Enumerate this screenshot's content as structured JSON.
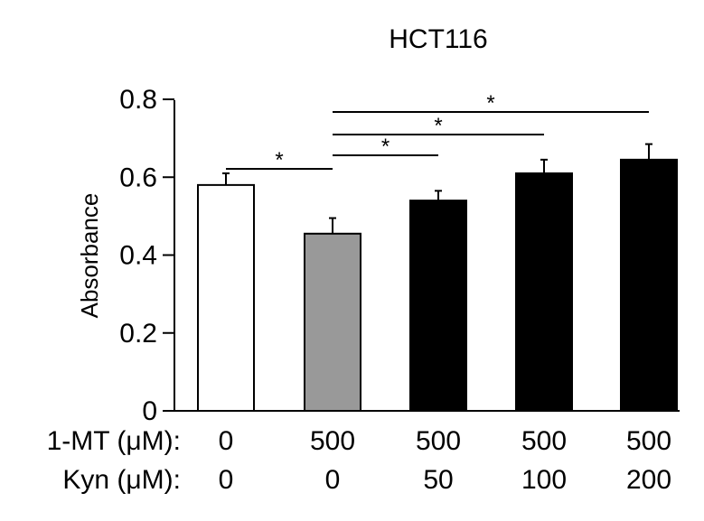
{
  "chart_data": {
    "type": "bar",
    "title": "HCT116",
    "ylabel": "Absorbance",
    "xlabel": "",
    "ylim": [
      0,
      0.8
    ],
    "yticks": [
      0,
      0.2,
      0.4,
      0.6,
      0.8
    ],
    "ytick_labels": [
      "0",
      "0.2",
      "0.4",
      "0.6",
      "0.8"
    ],
    "grid": false,
    "row_labels": [
      "1-MT (μM):",
      "Kyn (μM):"
    ],
    "categories": [
      {
        "mt": "0",
        "kyn": "0"
      },
      {
        "mt": "500",
        "kyn": "0"
      },
      {
        "mt": "500",
        "kyn": "50"
      },
      {
        "mt": "500",
        "kyn": "100"
      },
      {
        "mt": "500",
        "kyn": "200"
      }
    ],
    "values": [
      0.58,
      0.455,
      0.54,
      0.61,
      0.645
    ],
    "errors": [
      0.03,
      0.04,
      0.025,
      0.035,
      0.04
    ],
    "bar_colors": [
      "#ffffff",
      "#999999",
      "#000000",
      "#000000",
      "#000000"
    ],
    "significance": [
      {
        "from": 0,
        "to": 1,
        "label": "*"
      },
      {
        "from": 1,
        "to": 2,
        "label": "*"
      },
      {
        "from": 1,
        "to": 3,
        "label": "*"
      },
      {
        "from": 1,
        "to": 4,
        "label": "*"
      }
    ]
  }
}
